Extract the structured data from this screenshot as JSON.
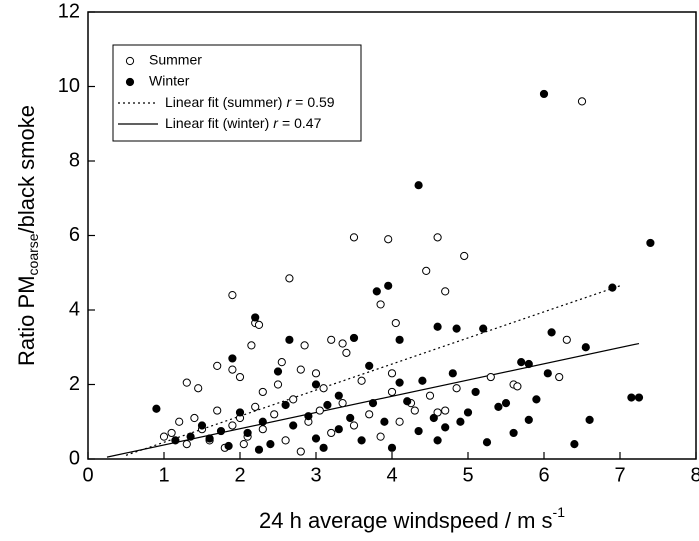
{
  "chart_data": {
    "type": "scatter",
    "xlabel": {
      "text": "24 h average windspeed / m s",
      "sup": "-1"
    },
    "ylabel": {
      "text": "Ratio PM",
      "sub": "coarse",
      "rest": "/black smoke"
    },
    "xlim": [
      0,
      8
    ],
    "xticks": [
      0,
      1,
      2,
      3,
      4,
      5,
      6,
      7,
      8
    ],
    "ylim": [
      0,
      12
    ],
    "yticks": [
      0,
      2,
      4,
      6,
      8,
      10,
      12
    ],
    "series": [
      {
        "name": "Summer",
        "marker": "open",
        "color": "#000000",
        "x": [
          6.5,
          3.5,
          3.95,
          4.6,
          4.95,
          4.45,
          4.7,
          2.65,
          1.9,
          3.85,
          4.05,
          2.2,
          2.25,
          2.15,
          2.85,
          3.2,
          3.35,
          6.3,
          6.2,
          3.4,
          2.55,
          1.7,
          1.9,
          1.3,
          1.45,
          2.0,
          2.3,
          2.8,
          3.0,
          3.1,
          3.6,
          4.0,
          4.25,
          4.5,
          4.7,
          5.6,
          5.65,
          5.3,
          4.0,
          1.1,
          1.2,
          1.3,
          1.5,
          1.6,
          1.7,
          1.8,
          1.9,
          2.0,
          2.1,
          2.2,
          2.3,
          2.45,
          2.6,
          2.7,
          2.8,
          2.9,
          3.05,
          3.2,
          3.35,
          3.5,
          3.7,
          3.85,
          4.1,
          4.3,
          4.6,
          4.85,
          1.0,
          1.4,
          2.05,
          2.5
        ],
        "values": [
          9.6,
          5.95,
          5.9,
          5.95,
          5.45,
          5.05,
          4.5,
          4.85,
          4.4,
          4.15,
          3.65,
          3.65,
          3.6,
          3.05,
          3.05,
          3.2,
          3.1,
          3.2,
          2.2,
          2.85,
          2.6,
          2.5,
          2.4,
          2.05,
          1.9,
          2.2,
          1.8,
          2.4,
          2.3,
          1.9,
          2.1,
          1.8,
          1.5,
          1.7,
          1.3,
          2.0,
          1.95,
          2.2,
          2.3,
          0.7,
          1.0,
          0.4,
          0.8,
          0.5,
          1.3,
          0.3,
          0.9,
          1.1,
          0.6,
          1.4,
          0.8,
          1.2,
          0.5,
          1.6,
          0.2,
          1.0,
          1.3,
          0.7,
          1.5,
          0.9,
          1.2,
          0.6,
          1.0,
          1.3,
          1.25,
          1.9,
          0.6,
          1.1,
          0.4,
          2.0
        ]
      },
      {
        "name": "Winter",
        "marker": "filled",
        "color": "#000000",
        "x": [
          6.0,
          4.35,
          7.4,
          6.9,
          3.95,
          3.8,
          2.2,
          4.6,
          4.85,
          5.2,
          6.1,
          6.55,
          4.1,
          3.5,
          2.65,
          5.8,
          6.05,
          5.9,
          6.6,
          6.4,
          7.15,
          7.25,
          5.7,
          5.8,
          5.25,
          4.9,
          4.6,
          4.35,
          0.9,
          1.9,
          2.5,
          3.0,
          3.3,
          3.7,
          4.1,
          4.4,
          4.8,
          5.1,
          5.5,
          4.0,
          3.6,
          3.3,
          3.0,
          2.7,
          2.4,
          2.1,
          1.85,
          1.6,
          1.35,
          1.15,
          1.5,
          2.0,
          2.3,
          2.6,
          2.9,
          3.15,
          3.45,
          3.75,
          4.2,
          4.55,
          5.0,
          5.4,
          5.6,
          4.7,
          3.9,
          3.1,
          2.25,
          1.75
        ],
        "values": [
          9.8,
          7.35,
          5.8,
          4.6,
          4.65,
          4.5,
          3.8,
          3.55,
          3.5,
          3.5,
          3.4,
          3.0,
          3.2,
          3.25,
          3.2,
          2.55,
          2.3,
          1.6,
          1.05,
          0.4,
          1.65,
          1.65,
          2.6,
          1.05,
          0.45,
          1.0,
          0.5,
          0.75,
          1.35,
          2.7,
          2.35,
          2.0,
          1.7,
          2.5,
          2.05,
          2.1,
          2.3,
          1.8,
          1.5,
          0.3,
          0.5,
          0.8,
          0.55,
          0.9,
          0.4,
          0.7,
          0.35,
          0.55,
          0.6,
          0.5,
          0.9,
          1.25,
          1.0,
          1.45,
          1.15,
          1.45,
          1.1,
          1.5,
          1.55,
          1.1,
          1.25,
          1.4,
          0.7,
          0.85,
          1.0,
          0.3,
          0.25,
          0.75
        ]
      }
    ],
    "fits": [
      {
        "name": "Linear fit (summer)",
        "dash": "dotted",
        "color": "#000000",
        "r_symbol": "r",
        "r_eq": "=",
        "r": 0.59,
        "x": [
          0.5,
          7.0
        ],
        "values": [
          0.1,
          4.65
        ]
      },
      {
        "name": "Linear fit (winter)",
        "dash": "solid",
        "color": "#000000",
        "r_symbol": "r",
        "r_eq": "=",
        "r": 0.47,
        "x": [
          0.25,
          7.25
        ],
        "values": [
          0.05,
          3.1
        ]
      }
    ]
  }
}
